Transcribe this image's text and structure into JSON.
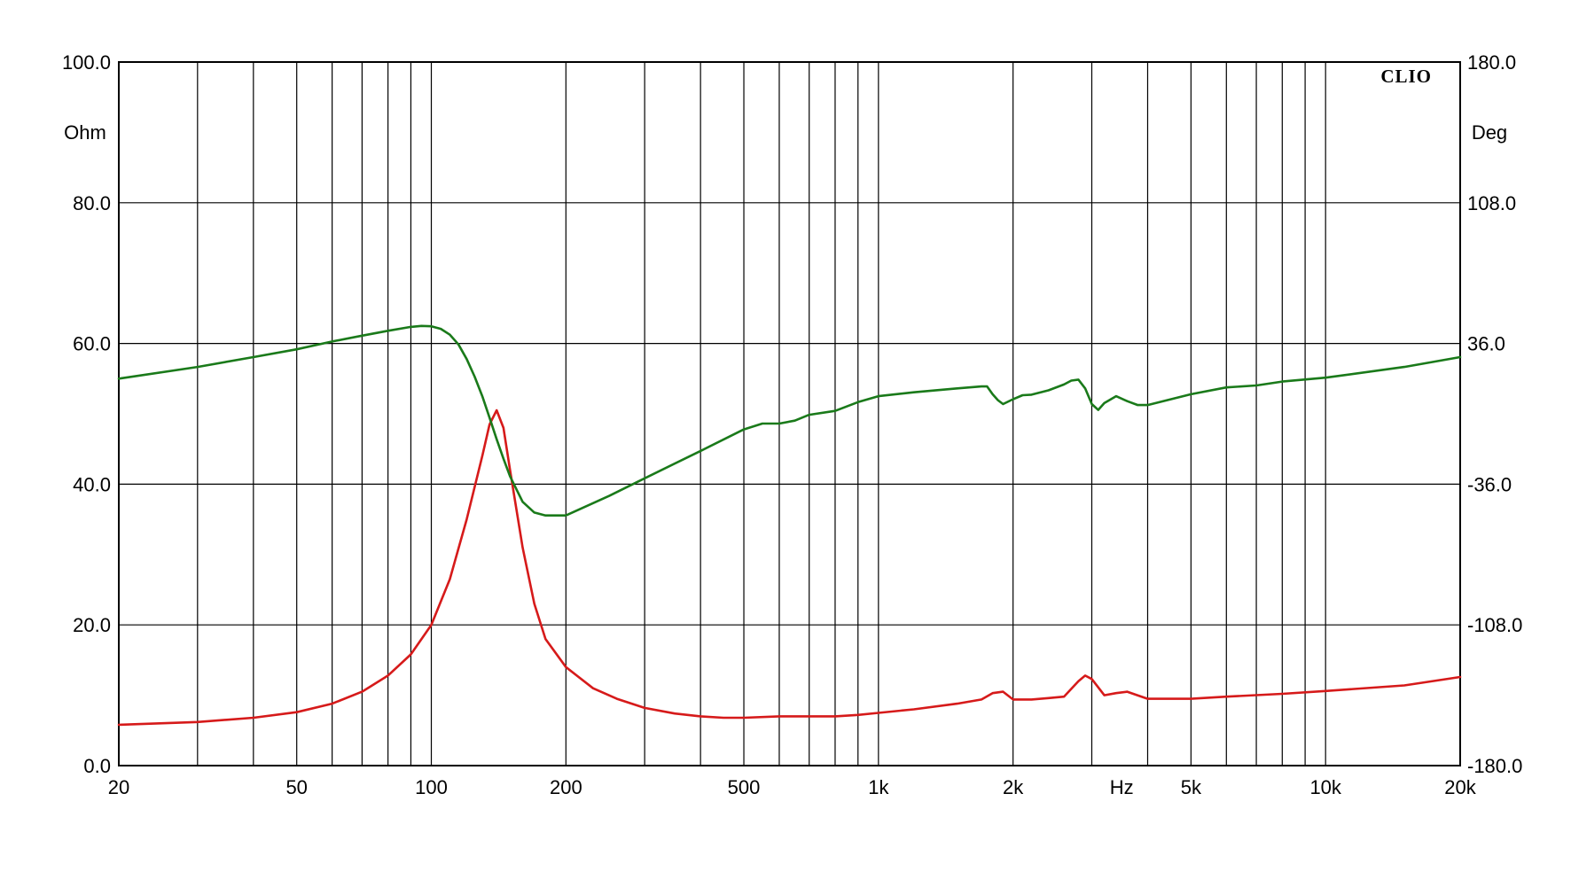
{
  "chart_data": {
    "type": "line",
    "brand": "CLIO",
    "title": "",
    "xlabel": "Hz",
    "ylabel_left": "Ohm",
    "ylabel_right": "Deg",
    "x_scale": "log",
    "xlim": [
      20,
      20000
    ],
    "ylim_left": [
      0,
      100
    ],
    "ylim_right": [
      -180,
      180
    ],
    "grid": true,
    "legend": "none",
    "x_tick_labels": [
      {
        "value": 20,
        "label": "20"
      },
      {
        "value": 50,
        "label": "50"
      },
      {
        "value": 100,
        "label": "100"
      },
      {
        "value": 200,
        "label": "200"
      },
      {
        "value": 500,
        "label": "500"
      },
      {
        "value": 1000,
        "label": "1k"
      },
      {
        "value": 2000,
        "label": "2k"
      },
      {
        "value": 5000,
        "label": "5k"
      },
      {
        "value": 10000,
        "label": "10k"
      },
      {
        "value": 20000,
        "label": "20k"
      }
    ],
    "x_grid_lines": [
      20,
      30,
      40,
      50,
      60,
      70,
      80,
      90,
      100,
      200,
      300,
      400,
      500,
      600,
      700,
      800,
      900,
      1000,
      2000,
      3000,
      4000,
      5000,
      6000,
      7000,
      8000,
      9000,
      10000,
      20000
    ],
    "y_left_ticks": [
      {
        "value": 0,
        "label": "0.0"
      },
      {
        "value": 20,
        "label": "20.0"
      },
      {
        "value": 40,
        "label": "40.0"
      },
      {
        "value": 60,
        "label": "60.0"
      },
      {
        "value": 80,
        "label": "80.0"
      },
      {
        "value": 100,
        "label": "100.0"
      }
    ],
    "y_right_ticks": [
      {
        "value": -180,
        "label": "-180.0"
      },
      {
        "value": -108,
        "label": "-108.0"
      },
      {
        "value": -36,
        "label": "-36.0"
      },
      {
        "value": 36,
        "label": "36.0"
      },
      {
        "value": 108,
        "label": "108.0"
      },
      {
        "value": 180,
        "label": "180.0"
      }
    ],
    "series": [
      {
        "axis": "left",
        "color": "#d61a1a",
        "x": [
          20,
          30,
          40,
          50,
          60,
          70,
          80,
          90,
          100,
          110,
          120,
          130,
          135,
          140,
          145,
          150,
          160,
          170,
          180,
          200,
          230,
          260,
          300,
          350,
          400,
          450,
          500,
          600,
          700,
          800,
          900,
          1000,
          1200,
          1500,
          1700,
          1800,
          1900,
          2000,
          2200,
          2400,
          2600,
          2800,
          2900,
          3000,
          3200,
          3400,
          3600,
          4000,
          5000,
          6000,
          8000,
          10000,
          15000,
          20000
        ],
        "values": [
          5.8,
          6.2,
          6.8,
          7.6,
          8.8,
          10.5,
          12.8,
          15.8,
          20.0,
          26.5,
          35.0,
          44.0,
          48.5,
          50.5,
          48.0,
          42.0,
          31.0,
          23.0,
          18.0,
          14.0,
          11.0,
          9.5,
          8.2,
          7.4,
          7.0,
          6.8,
          6.8,
          7.0,
          7.0,
          7.0,
          7.2,
          7.5,
          8.0,
          8.8,
          9.4,
          10.3,
          10.5,
          9.4,
          9.4,
          9.6,
          9.8,
          12.0,
          12.8,
          12.3,
          10.0,
          10.3,
          10.5,
          9.5,
          9.5,
          9.8,
          10.2,
          10.6,
          11.4,
          12.6
        ]
      },
      {
        "axis": "right",
        "color": "#1a7a1a",
        "x": [
          20,
          30,
          40,
          50,
          60,
          70,
          80,
          90,
          95,
          100,
          105,
          110,
          115,
          120,
          125,
          130,
          135,
          140,
          145,
          150,
          160,
          170,
          180,
          190,
          200,
          250,
          300,
          400,
          500,
          550,
          600,
          650,
          700,
          800,
          900,
          1000,
          1200,
          1500,
          1700,
          1750,
          1800,
          1850,
          1900,
          2000,
          2100,
          2200,
          2400,
          2600,
          2700,
          2800,
          2900,
          3000,
          3100,
          3200,
          3400,
          3600,
          3800,
          4000,
          5000,
          6000,
          7000,
          8000,
          10000,
          15000,
          20000
        ],
        "values": [
          18.0,
          24.0,
          29.0,
          33.0,
          37.0,
          40.0,
          42.5,
          44.5,
          45.0,
          44.8,
          43.5,
          40.5,
          35.5,
          28.0,
          19.0,
          9.0,
          -2.0,
          -13.0,
          -23.0,
          -32.0,
          -45.0,
          -50.5,
          -52.0,
          -52.0,
          -52.0,
          -42.0,
          -33.0,
          -19.0,
          -8.0,
          -5.0,
          -5.0,
          -3.5,
          -0.5,
          1.5,
          6.0,
          9.0,
          11.0,
          13.0,
          14.0,
          14.0,
          10.0,
          7.0,
          5.0,
          7.5,
          9.5,
          9.8,
          12.0,
          15.0,
          17.0,
          17.5,
          13.0,
          5.0,
          2.0,
          5.5,
          9.0,
          6.5,
          4.5,
          4.5,
          10.0,
          13.5,
          14.5,
          16.5,
          18.5,
          24.0,
          29.0
        ]
      }
    ]
  }
}
